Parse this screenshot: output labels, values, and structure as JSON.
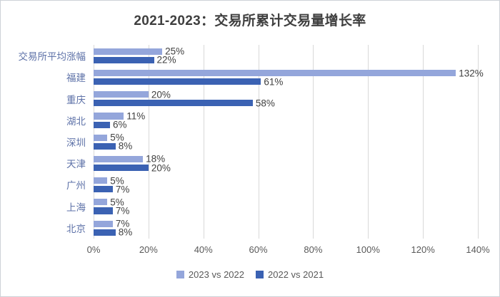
{
  "title": "2021-2023：交易所累计交易量增长率",
  "chart_data": {
    "type": "bar",
    "orientation": "horizontal",
    "title": "2021-2023：交易所累计交易量增长率",
    "categories_order": "top-to-bottom",
    "categories": [
      "交易所平均涨幅",
      "福建",
      "重庆",
      "湖北",
      "深圳",
      "天津",
      "广州",
      "上海",
      "北京"
    ],
    "series": [
      {
        "name": "2023 vs 2022",
        "color": "#94a6db",
        "values": [
          25,
          132,
          20,
          11,
          5,
          18,
          5,
          5,
          7
        ]
      },
      {
        "name": "2022 vs 2021",
        "color": "#3b62b3",
        "values": [
          22,
          61,
          58,
          6,
          8,
          20,
          7,
          7,
          8
        ]
      }
    ],
    "value_suffix": "%",
    "x_ticks": [
      "0%",
      "20%",
      "40%",
      "60%",
      "80%",
      "100%",
      "120%",
      "140%"
    ],
    "xlim": [
      0,
      140
    ],
    "xlabel": "",
    "ylabel": "",
    "grid": "vertical",
    "legend_position": "bottom"
  },
  "colors": {
    "series_light": "#94a6db",
    "series_dark": "#3b62b3",
    "gridline": "#d9d9d9",
    "tick_label": "#595959",
    "category_label": "#5e72a8",
    "value_label": "#404040",
    "title": "#3f3f3f",
    "frame_border": "#cdd2d8"
  }
}
